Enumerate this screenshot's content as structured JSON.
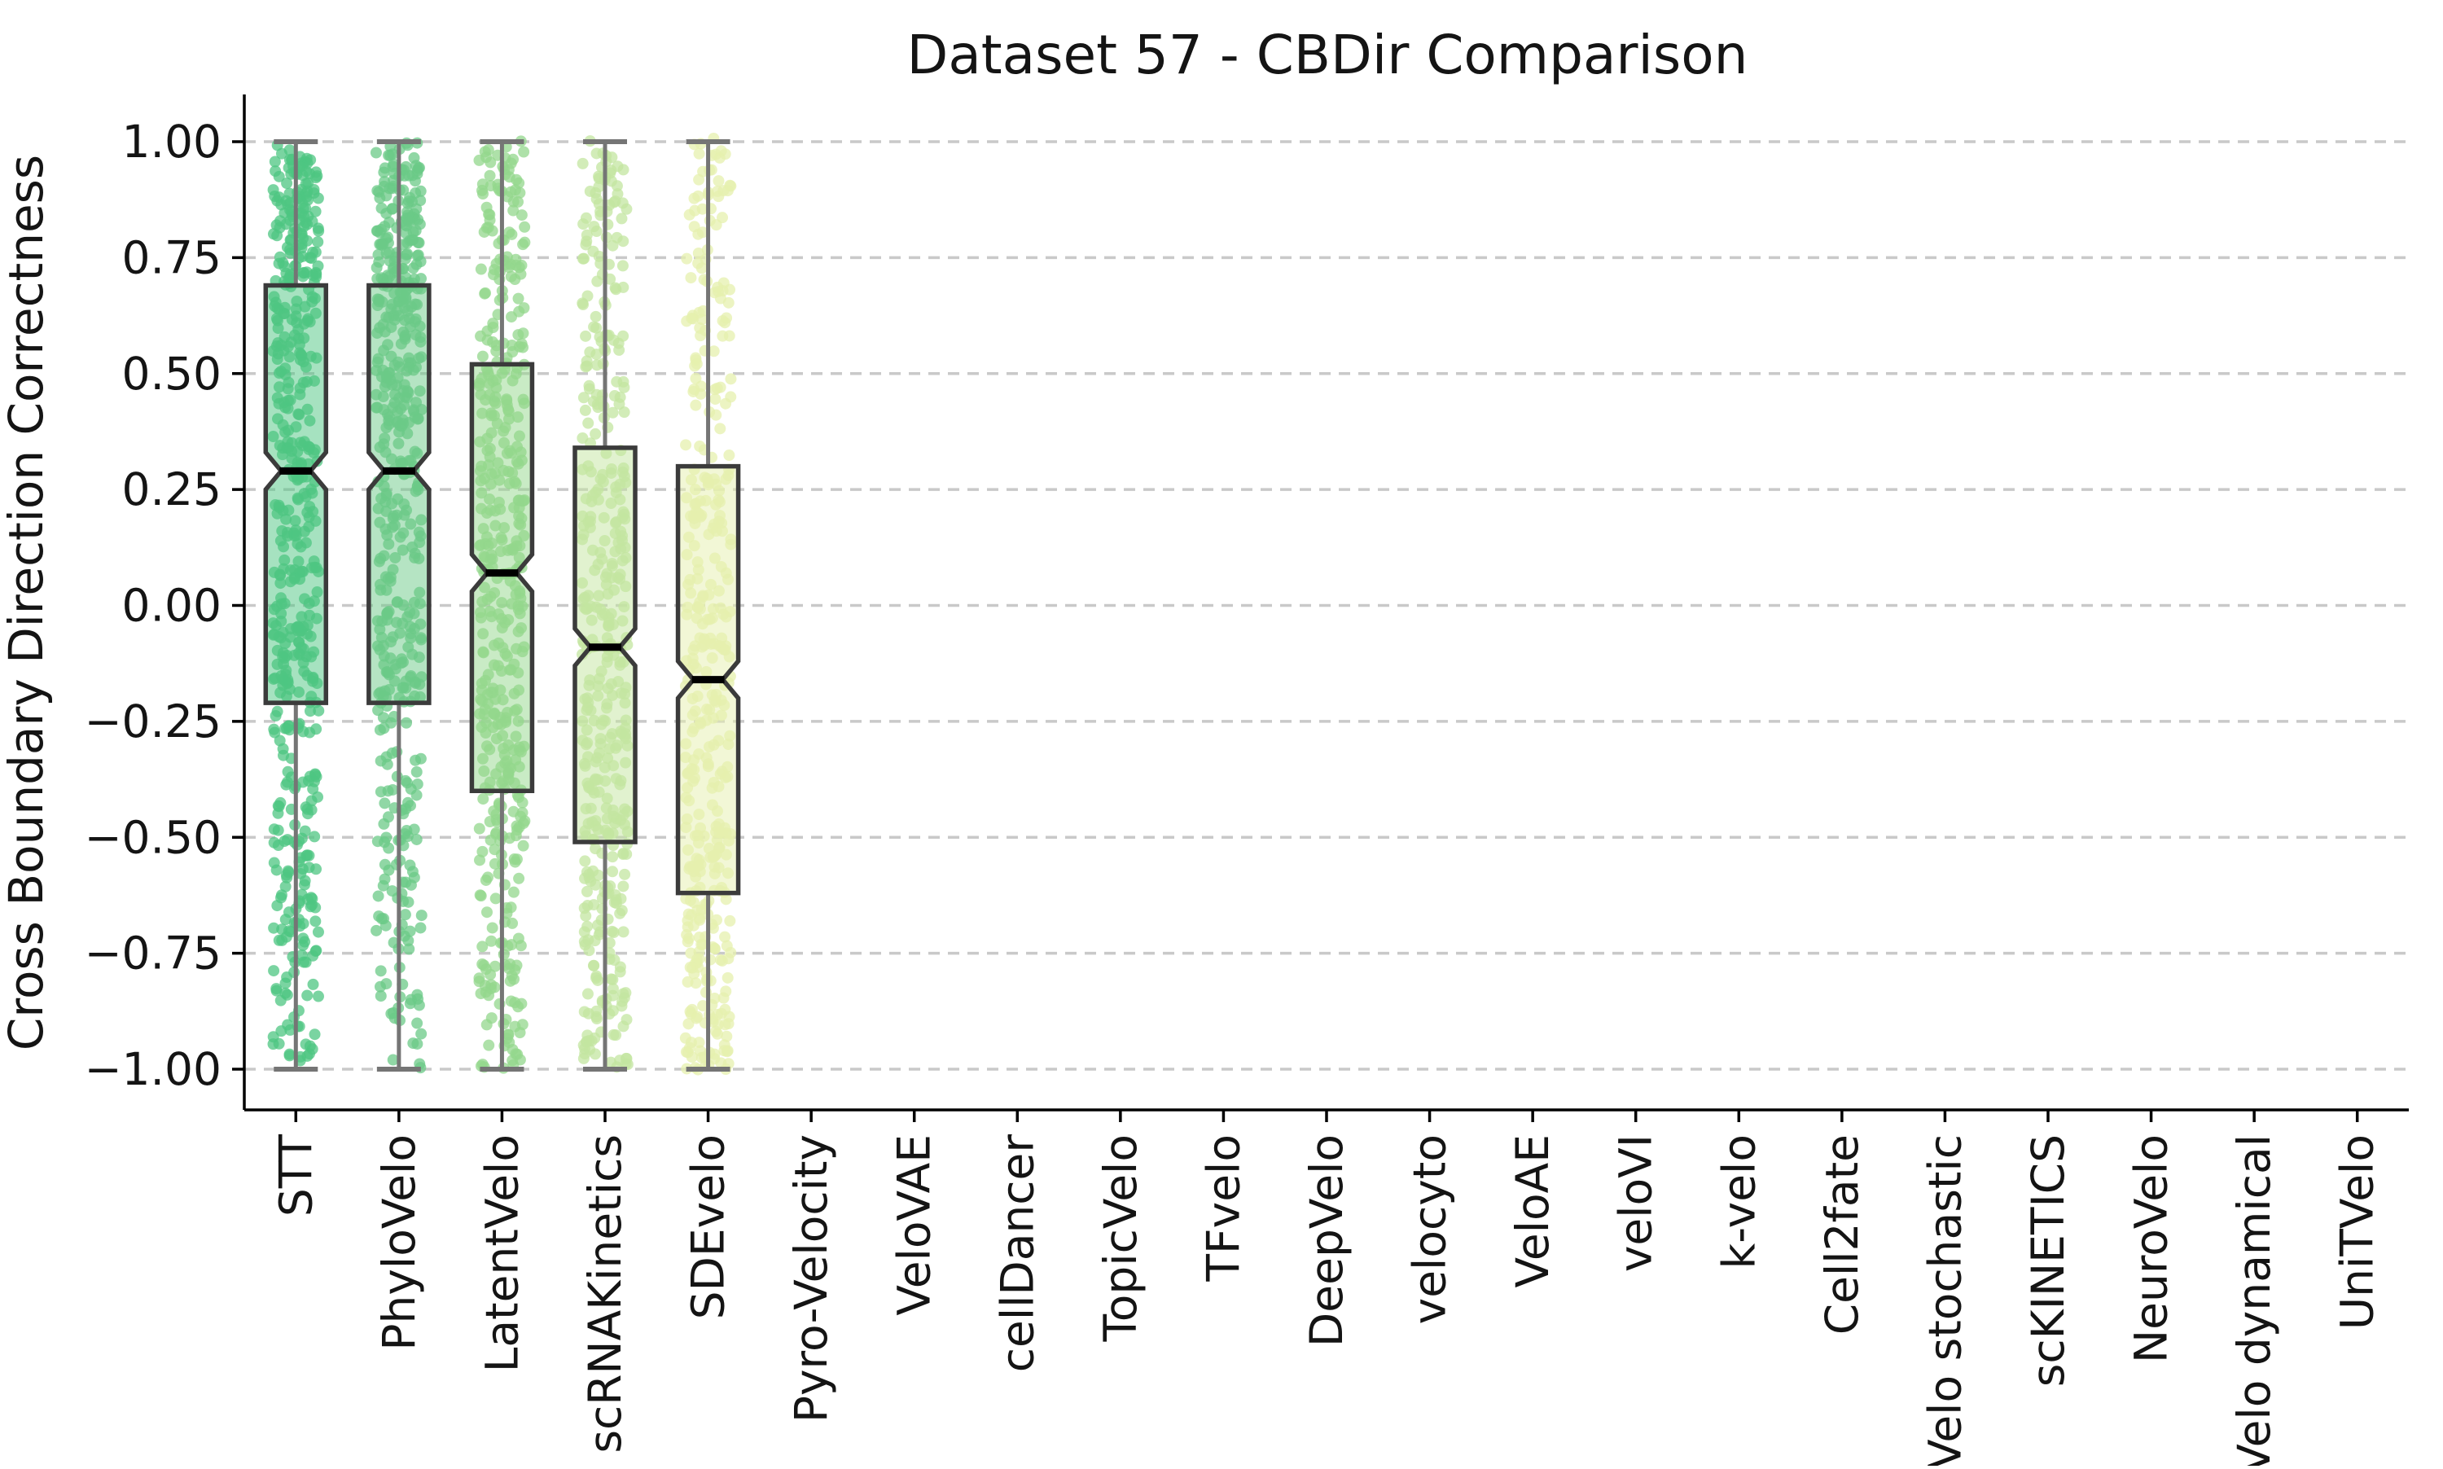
{
  "title": "Dataset 57 - CBDir Comparison",
  "chart_data": {
    "type": "box",
    "title": "Dataset 57 - CBDir Comparison",
    "xlabel": "",
    "ylabel": "Cross Boundary Direction Correctness",
    "ylim": [
      -1.1,
      1.1
    ],
    "grid": "horizontal-dashed",
    "legend": "none",
    "notched": true,
    "overlay": "jittered strip points per category",
    "yticks": [
      {
        "value": 1.0,
        "label": "1.00"
      },
      {
        "value": 0.75,
        "label": "0.75"
      },
      {
        "value": 0.5,
        "label": "0.50"
      },
      {
        "value": 0.25,
        "label": "0.25"
      },
      {
        "value": 0.0,
        "label": "0.00"
      },
      {
        "value": -0.25,
        "label": "−0.25"
      },
      {
        "value": -0.5,
        "label": "−0.50"
      },
      {
        "value": -0.75,
        "label": "−0.75"
      },
      {
        "value": -1.0,
        "label": "−1.00"
      }
    ],
    "categories": [
      "STT",
      "PhyloVelo",
      "LatentVelo",
      "scRNAKinetics",
      "SDEvelo",
      "Pyro-Velocity",
      "VeloVAE",
      "cellDancer",
      "TopicVelo",
      "TFvelo",
      "DeepVelo",
      "velocyto",
      "VeloAE",
      "veloVI",
      "k-velo",
      "Cell2fate",
      "scVelo stochastic",
      "scKINETICS",
      "NeuroVelo",
      "scVelo dynamical",
      "UniTVelo"
    ],
    "series": [
      {
        "name": "STT",
        "color": "#4ec681",
        "q1": -0.21,
        "median": 0.29,
        "q3": 0.69,
        "whisker_low": -1.0,
        "whisker_high": 1.0,
        "n_points": 520
      },
      {
        "name": "PhyloVelo",
        "color": "#6bca87",
        "q1": -0.21,
        "median": 0.29,
        "q3": 0.69,
        "whisker_low": -1.0,
        "whisker_high": 1.0,
        "n_points": 500
      },
      {
        "name": "LatentVelo",
        "color": "#93d78c",
        "q1": -0.4,
        "median": 0.07,
        "q3": 0.52,
        "whisker_low": -1.0,
        "whisker_high": 1.0,
        "n_points": 460
      },
      {
        "name": "scRNAKinetics",
        "color": "#c3e5a0",
        "q1": -0.51,
        "median": -0.09,
        "q3": 0.34,
        "whisker_low": -1.0,
        "whisker_high": 1.0,
        "n_points": 430
      },
      {
        "name": "SDEvelo",
        "color": "#e6f0ad",
        "q1": -0.62,
        "median": -0.16,
        "q3": 0.3,
        "whisker_low": -1.0,
        "whisker_high": 1.0,
        "n_points": 400
      }
    ],
    "empty_categories": [
      "Pyro-Velocity",
      "VeloVAE",
      "cellDancer",
      "TopicVelo",
      "TFvelo",
      "DeepVelo",
      "velocyto",
      "VeloAE",
      "veloVI",
      "k-velo",
      "Cell2fate",
      "scVelo stochastic",
      "scKINETICS",
      "NeuroVelo",
      "scVelo dynamical",
      "UniTVelo"
    ],
    "style": {
      "grid_color": "#c9c9c9",
      "box_edge_color": "#3b3b3b",
      "median_color": "#000000",
      "whisker_color": "#757575",
      "axis_color": "#000000",
      "background": "#ffffff"
    }
  }
}
